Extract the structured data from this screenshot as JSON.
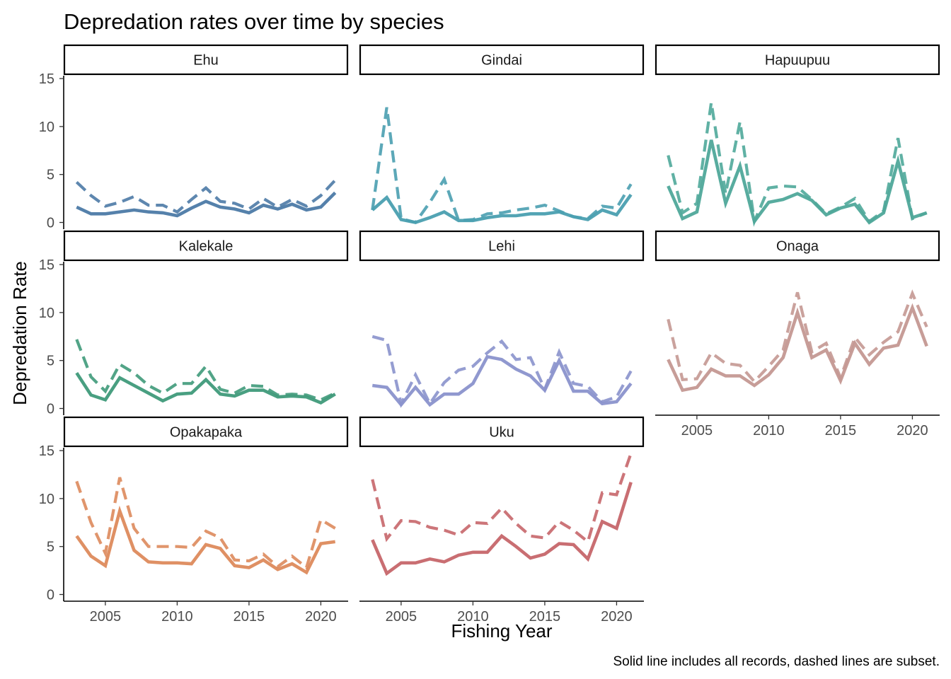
{
  "chart_data": {
    "type": "line",
    "title": "Depredation rates over time by species",
    "xlabel": "Fishing Year",
    "ylabel": "Depredation Rate",
    "caption": "Solid line includes all records, dashed lines are subset.",
    "x": [
      2003,
      2004,
      2005,
      2006,
      2007,
      2008,
      2009,
      2010,
      2011,
      2012,
      2013,
      2014,
      2015,
      2016,
      2017,
      2018,
      2019,
      2020,
      2021
    ],
    "xlim": [
      2002.1,
      2021.9
    ],
    "ylim": [
      -0.7,
      15.3
    ],
    "x_ticks": [
      2005,
      2010,
      2015,
      2020
    ],
    "y_ticks": [
      0,
      5,
      10,
      15
    ],
    "grid": false,
    "line_styles": {
      "all_records": "solid",
      "subset": "dashed"
    },
    "panels": [
      {
        "name": "Ehu",
        "color": "#4c7aa6",
        "all_records": [
          1.6,
          0.9,
          0.9,
          1.1,
          1.3,
          1.1,
          1.0,
          0.7,
          1.5,
          2.2,
          1.6,
          1.4,
          1.0,
          1.8,
          1.4,
          1.9,
          1.3,
          1.6,
          3.1
        ],
        "subset": [
          4.2,
          2.8,
          1.7,
          2.1,
          2.7,
          1.8,
          1.8,
          1.1,
          2.4,
          3.6,
          2.2,
          2.0,
          1.4,
          2.5,
          1.6,
          2.4,
          1.7,
          2.8,
          4.4
        ]
      },
      {
        "name": "Gindai",
        "color": "#4a9fb0",
        "all_records": [
          1.3,
          2.6,
          0.3,
          0.0,
          0.5,
          1.1,
          0.2,
          0.2,
          0.5,
          0.7,
          0.7,
          0.9,
          0.9,
          1.1,
          0.6,
          0.3,
          1.3,
          0.8,
          2.9
        ],
        "subset": [
          1.3,
          12.0,
          0.4,
          0.0,
          2.1,
          4.5,
          0.2,
          0.3,
          0.9,
          1.0,
          1.3,
          1.5,
          1.8,
          1.2,
          0.6,
          0.4,
          1.7,
          1.5,
          4.0
        ]
      },
      {
        "name": "Hapuupuu",
        "color": "#4fa89a",
        "all_records": [
          3.8,
          0.4,
          1.1,
          8.6,
          2.0,
          5.9,
          0.1,
          2.1,
          2.4,
          3.0,
          2.3,
          0.8,
          1.5,
          1.9,
          0.0,
          1.0,
          6.4,
          0.5,
          1.0
        ],
        "subset": [
          7.0,
          1.0,
          2.0,
          12.5,
          3.0,
          10.5,
          0.1,
          3.6,
          3.8,
          3.7,
          2.4,
          0.9,
          1.6,
          2.5,
          0.1,
          1.2,
          8.8,
          0.4,
          1.0
        ]
      },
      {
        "name": "Kalekale",
        "color": "#3f9a7a",
        "all_records": [
          3.7,
          1.4,
          0.9,
          3.2,
          2.4,
          1.6,
          0.8,
          1.5,
          1.6,
          3.0,
          1.5,
          1.3,
          1.9,
          1.9,
          1.2,
          1.3,
          1.2,
          0.6,
          1.5
        ],
        "subset": [
          7.2,
          3.3,
          1.8,
          4.6,
          3.7,
          2.4,
          1.6,
          2.6,
          2.6,
          4.4,
          2.0,
          1.6,
          2.4,
          2.3,
          1.4,
          1.5,
          1.4,
          0.9,
          1.6
        ]
      },
      {
        "name": "Lehi",
        "color": "#8a92cc",
        "all_records": [
          2.4,
          2.2,
          0.4,
          2.2,
          0.4,
          1.5,
          1.5,
          2.6,
          5.4,
          5.1,
          4.1,
          3.4,
          1.9,
          5.0,
          1.8,
          1.8,
          0.5,
          0.7,
          2.6
        ],
        "subset": [
          7.5,
          7.1,
          0.5,
          3.5,
          0.5,
          2.7,
          4.0,
          4.4,
          5.8,
          7.0,
          5.1,
          5.3,
          2.0,
          5.9,
          2.6,
          2.3,
          0.7,
          1.2,
          3.9
        ]
      },
      {
        "name": "Onaga",
        "color": "#c49892",
        "all_records": [
          5.1,
          1.9,
          2.2,
          4.1,
          3.4,
          3.4,
          2.4,
          3.5,
          5.3,
          10.0,
          5.3,
          6.1,
          2.9,
          6.8,
          4.6,
          6.3,
          6.6,
          10.5,
          6.5
        ],
        "subset": [
          9.3,
          3.0,
          3.1,
          5.8,
          4.7,
          4.5,
          2.8,
          4.4,
          6.1,
          12.1,
          5.9,
          6.8,
          3.2,
          7.4,
          5.6,
          6.9,
          8.0,
          12.0,
          8.5
        ]
      },
      {
        "name": "Opakapaka",
        "color": "#dd8a5c",
        "all_records": [
          6.1,
          4.0,
          3.0,
          8.7,
          4.6,
          3.4,
          3.3,
          3.3,
          3.2,
          5.2,
          4.8,
          3.0,
          2.8,
          3.6,
          2.6,
          3.2,
          2.3,
          5.3,
          5.5
        ],
        "subset": [
          11.8,
          7.5,
          4.3,
          12.2,
          6.9,
          5.0,
          5.0,
          5.0,
          4.9,
          6.6,
          5.9,
          3.6,
          3.5,
          4.2,
          2.9,
          4.0,
          2.8,
          7.8,
          6.9
        ]
      },
      {
        "name": "Uku",
        "color": "#c6666a",
        "all_records": [
          5.7,
          2.2,
          3.3,
          3.3,
          3.7,
          3.4,
          4.1,
          4.4,
          4.4,
          6.1,
          5.0,
          3.8,
          4.2,
          5.3,
          5.2,
          3.7,
          7.6,
          6.9,
          11.7
        ],
        "subset": [
          12.0,
          5.8,
          7.7,
          7.6,
          7.0,
          6.7,
          6.2,
          7.5,
          7.4,
          9.0,
          7.4,
          6.1,
          5.9,
          7.6,
          6.7,
          5.5,
          10.6,
          10.4,
          14.7
        ]
      }
    ]
  }
}
